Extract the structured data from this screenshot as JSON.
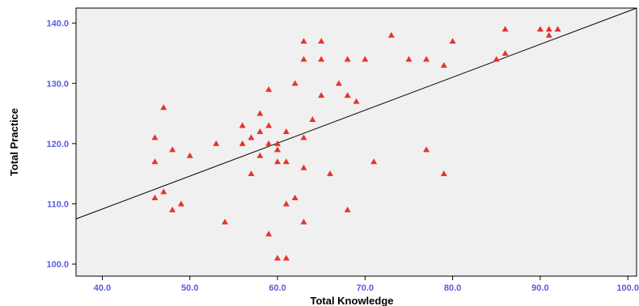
{
  "chart_data": {
    "type": "scatter",
    "title": "",
    "xlabel": "Total Knowledge",
    "ylabel": "Total Practice",
    "xlim": [
      37,
      101
    ],
    "ylim": [
      98,
      142.5
    ],
    "x_ticks": [
      40,
      50,
      60,
      70,
      80,
      90,
      100
    ],
    "y_ticks": [
      100,
      110,
      120,
      130,
      140
    ],
    "x_tick_labels": [
      "40.0",
      "50.0",
      "60.0",
      "70.0",
      "80.0",
      "90.0",
      "100.0"
    ],
    "y_tick_labels": [
      "100.0",
      "110.0",
      "120.0",
      "130.0",
      "140.0"
    ],
    "grid": false,
    "legend": "none",
    "marker": "triangle",
    "colors": {
      "plot_background": "#f0f0f0",
      "marker": "#e8322f",
      "tick_label": "#5b5bdc",
      "fit_line": "#000000"
    },
    "fit_line": {
      "x": [
        37,
        101
      ],
      "y": [
        107.5,
        142.5
      ]
    },
    "points": [
      {
        "x": 46,
        "y": 121
      },
      {
        "x": 46,
        "y": 117
      },
      {
        "x": 46,
        "y": 111
      },
      {
        "x": 47,
        "y": 126
      },
      {
        "x": 47,
        "y": 112
      },
      {
        "x": 48,
        "y": 119
      },
      {
        "x": 48,
        "y": 109
      },
      {
        "x": 49,
        "y": 110
      },
      {
        "x": 50,
        "y": 118
      },
      {
        "x": 53,
        "y": 120
      },
      {
        "x": 54,
        "y": 107
      },
      {
        "x": 56,
        "y": 123
      },
      {
        "x": 56,
        "y": 120
      },
      {
        "x": 57,
        "y": 121
      },
      {
        "x": 57,
        "y": 115
      },
      {
        "x": 58,
        "y": 125
      },
      {
        "x": 58,
        "y": 122
      },
      {
        "x": 58,
        "y": 118
      },
      {
        "x": 59,
        "y": 129
      },
      {
        "x": 59,
        "y": 123
      },
      {
        "x": 59,
        "y": 120
      },
      {
        "x": 59,
        "y": 105
      },
      {
        "x": 60,
        "y": 120
      },
      {
        "x": 60,
        "y": 119
      },
      {
        "x": 60,
        "y": 117
      },
      {
        "x": 60,
        "y": 101
      },
      {
        "x": 61,
        "y": 122
      },
      {
        "x": 61,
        "y": 117
      },
      {
        "x": 61,
        "y": 110
      },
      {
        "x": 61,
        "y": 101
      },
      {
        "x": 62,
        "y": 130
      },
      {
        "x": 62,
        "y": 111
      },
      {
        "x": 63,
        "y": 137
      },
      {
        "x": 63,
        "y": 134
      },
      {
        "x": 63,
        "y": 121
      },
      {
        "x": 63,
        "y": 116
      },
      {
        "x": 63,
        "y": 107
      },
      {
        "x": 64,
        "y": 124
      },
      {
        "x": 65,
        "y": 137
      },
      {
        "x": 65,
        "y": 134
      },
      {
        "x": 65,
        "y": 128
      },
      {
        "x": 66,
        "y": 115
      },
      {
        "x": 67,
        "y": 130
      },
      {
        "x": 68,
        "y": 134
      },
      {
        "x": 68,
        "y": 128
      },
      {
        "x": 68,
        "y": 109
      },
      {
        "x": 69,
        "y": 127
      },
      {
        "x": 70,
        "y": 134
      },
      {
        "x": 71,
        "y": 117
      },
      {
        "x": 73,
        "y": 138
      },
      {
        "x": 75,
        "y": 134
      },
      {
        "x": 77,
        "y": 134
      },
      {
        "x": 77,
        "y": 119
      },
      {
        "x": 79,
        "y": 133
      },
      {
        "x": 79,
        "y": 115
      },
      {
        "x": 80,
        "y": 137
      },
      {
        "x": 85,
        "y": 134
      },
      {
        "x": 86,
        "y": 139
      },
      {
        "x": 86,
        "y": 135
      },
      {
        "x": 90,
        "y": 139
      },
      {
        "x": 91,
        "y": 139
      },
      {
        "x": 91,
        "y": 138
      },
      {
        "x": 92,
        "y": 139
      }
    ]
  }
}
